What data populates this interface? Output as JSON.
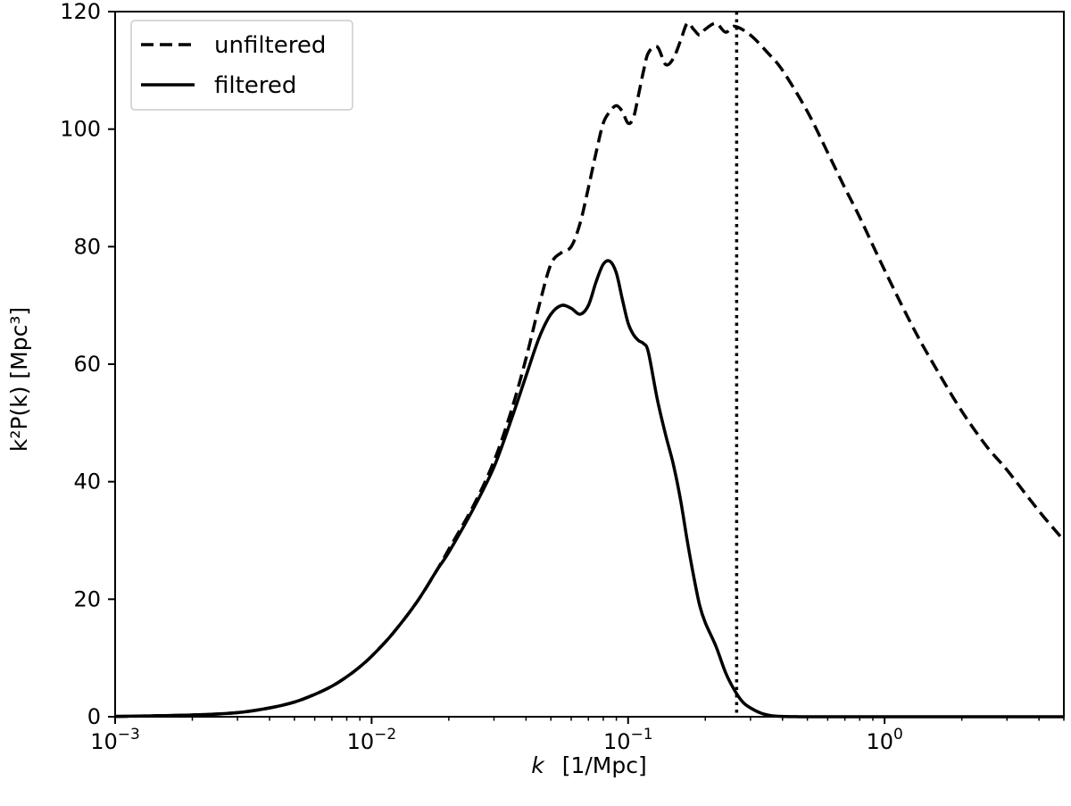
{
  "chart_data": {
    "type": "line",
    "xscale": "log",
    "xlim": [
      0.001,
      5.0
    ],
    "ylim": [
      0,
      120
    ],
    "xlabel_var": "k",
    "xlabel_unit": "[1/Mpc]",
    "ylabel": "k²P(k)   [Mpc³]",
    "x_ticks": [
      {
        "base": "10",
        "exp": "−3",
        "value": 0.001
      },
      {
        "base": "10",
        "exp": "−2",
        "value": 0.01
      },
      {
        "base": "10",
        "exp": "−1",
        "value": 0.1
      },
      {
        "base": "10",
        "exp": "0",
        "value": 1.0
      }
    ],
    "y_ticks": [
      "0",
      "20",
      "40",
      "60",
      "80",
      "100",
      "120"
    ],
    "y_tick_values": [
      0,
      20,
      40,
      60,
      80,
      100,
      120
    ],
    "legend_position": "top-left",
    "vertical_line": {
      "x": 0.265,
      "style": "dotted"
    },
    "series": [
      {
        "name": "unfiltered",
        "style": "dashed",
        "color": "#000000",
        "x": [
          0.001,
          0.002,
          0.003,
          0.004,
          0.005,
          0.006,
          0.007,
          0.008,
          0.009,
          0.01,
          0.012,
          0.015,
          0.018,
          0.02,
          0.025,
          0.03,
          0.035,
          0.04,
          0.045,
          0.05,
          0.055,
          0.06,
          0.065,
          0.07,
          0.075,
          0.08,
          0.085,
          0.09,
          0.095,
          0.1,
          0.105,
          0.11,
          0.115,
          0.12,
          0.13,
          0.14,
          0.15,
          0.16,
          0.17,
          0.18,
          0.19,
          0.2,
          0.22,
          0.24,
          0.26,
          0.3,
          0.35,
          0.4,
          0.5,
          0.6,
          0.7,
          0.8,
          1.0,
          1.3,
          1.6,
          2.0,
          2.5,
          3.0,
          4.0,
          5.0
        ],
        "y": [
          0.05,
          0.3,
          0.7,
          1.5,
          2.5,
          3.8,
          5.2,
          6.8,
          8.5,
          10.3,
          14,
          19.5,
          25,
          28.5,
          36,
          43.5,
          52,
          61,
          70,
          77,
          79,
          80,
          84,
          90,
          96,
          101,
          103,
          104,
          103,
          101,
          102,
          106,
          110,
          113,
          114,
          111,
          112,
          115,
          118,
          117,
          116,
          117,
          118,
          116.5,
          117.5,
          116,
          113,
          110,
          103,
          96,
          90,
          85,
          76,
          66,
          59,
          52,
          46,
          42,
          35,
          30
        ]
      },
      {
        "name": "filtered",
        "style": "solid",
        "color": "#000000",
        "x": [
          0.001,
          0.002,
          0.003,
          0.004,
          0.005,
          0.006,
          0.007,
          0.008,
          0.009,
          0.01,
          0.012,
          0.015,
          0.018,
          0.02,
          0.025,
          0.03,
          0.035,
          0.04,
          0.045,
          0.05,
          0.055,
          0.06,
          0.065,
          0.07,
          0.075,
          0.08,
          0.085,
          0.09,
          0.095,
          0.1,
          0.105,
          0.11,
          0.115,
          0.12,
          0.13,
          0.14,
          0.15,
          0.16,
          0.17,
          0.18,
          0.19,
          0.2,
          0.22,
          0.24,
          0.26,
          0.28,
          0.3,
          0.33,
          0.36,
          0.4,
          0.45,
          0.5,
          0.6,
          1.0,
          2.0,
          5.0
        ],
        "y": [
          0.05,
          0.3,
          0.7,
          1.5,
          2.5,
          3.8,
          5.2,
          6.8,
          8.5,
          10.3,
          14,
          19.5,
          25,
          28,
          35.5,
          42.5,
          50.5,
          58,
          64.5,
          68.5,
          70,
          69.5,
          68.5,
          70,
          74,
          77,
          77.5,
          75.5,
          71,
          67,
          65,
          64,
          63.5,
          62,
          54,
          48,
          43,
          37,
          30,
          24,
          19,
          16,
          12,
          7.5,
          4.5,
          2.5,
          1.5,
          0.6,
          0.2,
          0.05,
          0.01,
          0,
          0,
          0,
          0,
          0
        ]
      }
    ]
  }
}
